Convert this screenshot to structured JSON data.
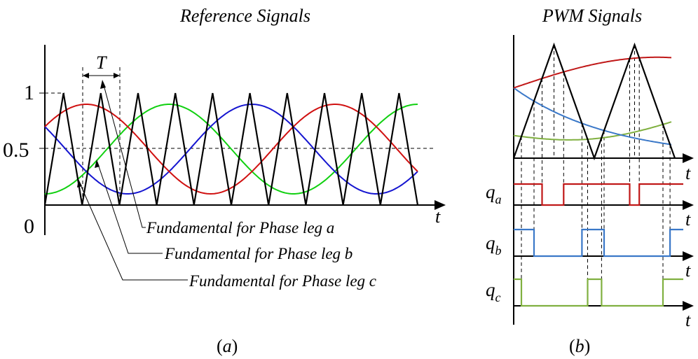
{
  "panel_a": {
    "title": "Reference Signals",
    "caption_pre": "(",
    "caption_letter": "a",
    "caption_post": ")",
    "y_ticks": [
      "0",
      "0.5",
      "1"
    ],
    "x_axis_label": "t",
    "period_label": "T",
    "annotations": [
      "Fundamental  for Phase leg a",
      "Fundamental  for Phase leg b",
      "Fundamental  for Phase leg c"
    ]
  },
  "panel_b": {
    "title": "PWM Signals",
    "caption_pre": "(",
    "caption_letter": "b",
    "caption_post": ")",
    "axis_label": "t",
    "labels": [
      {
        "main": "q",
        "sub": "a"
      },
      {
        "main": "q",
        "sub": "b"
      },
      {
        "main": "q",
        "sub": "c"
      }
    ]
  },
  "colors": {
    "phase_a": "#d01010",
    "phase_b": "#1515d0",
    "phase_c": "#10d010",
    "pwm_a": "#c01818",
    "pwm_b": "#3a78c8",
    "pwm_c": "#80b040",
    "carrier": "#000000"
  }
}
